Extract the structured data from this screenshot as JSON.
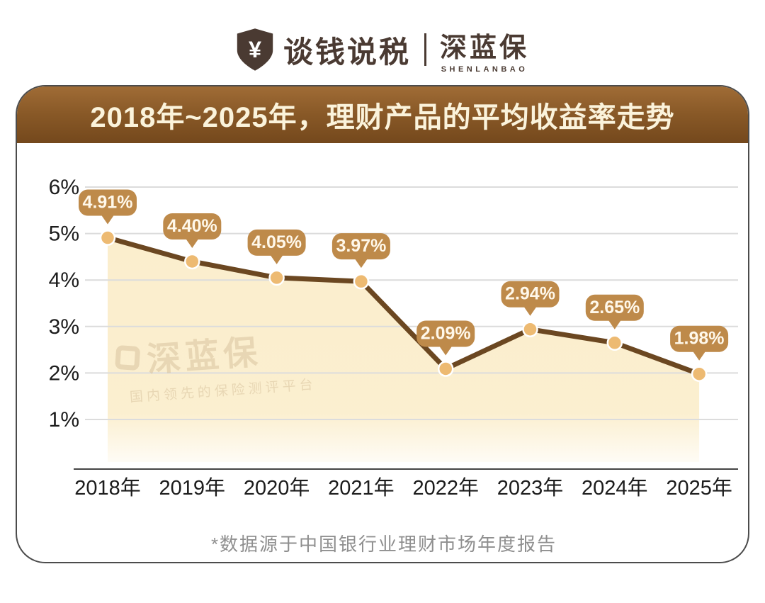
{
  "logo": {
    "shield_symbol": "¥",
    "brand_left": "谈钱说税",
    "brand_right": "深蓝保",
    "brand_sub": "SHENLANBAO"
  },
  "watermark": {
    "name": "深蓝保",
    "tagline": "国内领先的保险测评平台"
  },
  "colors": {
    "banner_top": "#a06c36",
    "banner_mid": "#8a5a28",
    "banner_bottom": "#74481c",
    "title_text": "#fbf3db",
    "bubble_fill": "#be8a4a",
    "bubble_text": "#fff8ea",
    "trend_line": "#6b4721",
    "point_fill": "#edba72",
    "point_stroke": "#ffffff",
    "area_fill": "#fbeecd",
    "gridline": "#dcdcdc",
    "axis_line": "#444444",
    "axis_text": "#1c1c1c",
    "footnote_text": "#8f8f8f",
    "logo_color": "#4a3a32",
    "watermark_color": "#d9c49e"
  },
  "chart_data": {
    "type": "line",
    "title": "2018年~2025年，理财产品的平均收益率走势",
    "categories": [
      "2018年",
      "2019年",
      "2020年",
      "2021年",
      "2022年",
      "2023年",
      "2024年",
      "2025年"
    ],
    "values": [
      4.91,
      4.4,
      4.05,
      3.97,
      2.09,
      2.94,
      2.65,
      1.98
    ],
    "point_labels": [
      "4.91%",
      "4.40%",
      "4.05%",
      "3.97%",
      "2.09%",
      "2.94%",
      "2.65%",
      "1.98%"
    ],
    "series_name": "理财产品的平均收益率",
    "xlabel": "",
    "ylabel": "",
    "y_ticks": [
      6,
      5,
      4,
      3,
      2,
      1
    ],
    "y_tick_labels": [
      "6%",
      "5%",
      "4%",
      "3%",
      "2%",
      "1%"
    ],
    "ylim": [
      1,
      6
    ],
    "grid": true,
    "area_fill": true,
    "legend_position": "none",
    "source_note": "*数据源于中国银行业理财市场年度报告"
  }
}
